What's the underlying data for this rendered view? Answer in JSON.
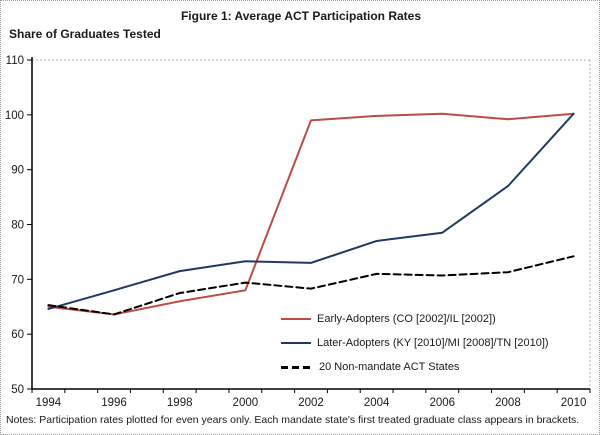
{
  "title": "Figure 1: Average ACT Participation Rates",
  "axis_caption": "Share of Graduates Tested",
  "notes": "Notes:  Participation rates plotted for even years only. Each mandate state's first treated graduate class appears in brackets.",
  "colors": {
    "early_adopters": "#BE4B48",
    "later_adopters": "#1F3864",
    "non_mandate": "#000000",
    "axis": "#000000",
    "plot_border": "#b3b3b3"
  },
  "chart_data": {
    "type": "line",
    "title": "Figure 1: Average ACT Participation Rates",
    "ylabel": "Share of Graduates Tested",
    "xlabel": "",
    "x": [
      1994,
      1996,
      1998,
      2000,
      2002,
      2004,
      2006,
      2008,
      2010
    ],
    "ylim": [
      50,
      110
    ],
    "yticks": [
      50,
      60,
      70,
      80,
      90,
      100,
      110
    ],
    "grid": false,
    "legend_position": "inside-bottom-right",
    "series": [
      {
        "name": "Early-Adopters (CO [2002]/IL [2002])",
        "color": "#BE4B48",
        "style": "solid",
        "values": [
          65,
          63.6,
          66,
          68,
          99,
          99.8,
          100.2,
          99.2,
          100.2
        ]
      },
      {
        "name": "Later-Adopters (KY [2010]/MI [2008]/TN [2010])",
        "color": "#1F3864",
        "style": "solid",
        "values": [
          64.6,
          68,
          71.5,
          73.3,
          73,
          77,
          78.5,
          87,
          100.2
        ]
      },
      {
        "name": "20 Non-mandate ACT States",
        "color": "#000000",
        "style": "dashed",
        "values": [
          65.3,
          63.6,
          67.5,
          69.4,
          68.3,
          71,
          70.7,
          71.3,
          74.2
        ]
      }
    ]
  }
}
